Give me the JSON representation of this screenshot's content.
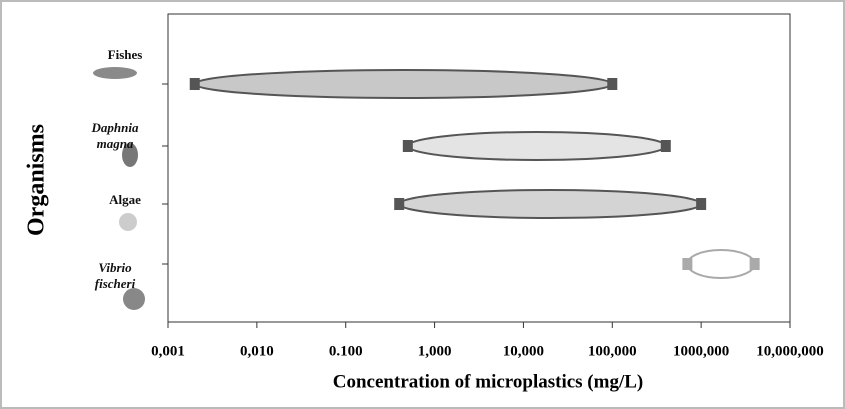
{
  "chart_data": {
    "type": "range",
    "x_label": "Concentration of microplastics (mg/L)",
    "y_label": "Organisms",
    "categories": [
      "Fishes",
      "Daphnia magna",
      "Algae",
      "Vibrio fischeri"
    ],
    "italic": [
      false,
      true,
      false,
      true
    ],
    "low": [
      0.002,
      0.5,
      0.4,
      700
    ],
    "high": [
      100,
      400,
      1000,
      4000
    ],
    "colors": [
      "#c8c8c8",
      "#e4e4e4",
      "#d4d4d4",
      "#ffffff"
    ],
    "edge_colors": [
      "#555555",
      "#555555",
      "#555555",
      "#aaaaaa"
    ],
    "xscale": "log",
    "xlim": [
      0.001,
      10000
    ],
    "xticks": [
      {
        "value": 0.001,
        "label": "0,001"
      },
      {
        "value": 0.01,
        "label": "0,010"
      },
      {
        "value": 0.1,
        "label": "0.100"
      },
      {
        "value": 1,
        "label": "1,000"
      },
      {
        "value": 10,
        "label": "10,000"
      },
      {
        "value": 100,
        "label": "100,000"
      },
      {
        "value": 1000,
        "label": "1000,000"
      },
      {
        "value": 10000,
        "label": "10,000,000"
      }
    ]
  }
}
